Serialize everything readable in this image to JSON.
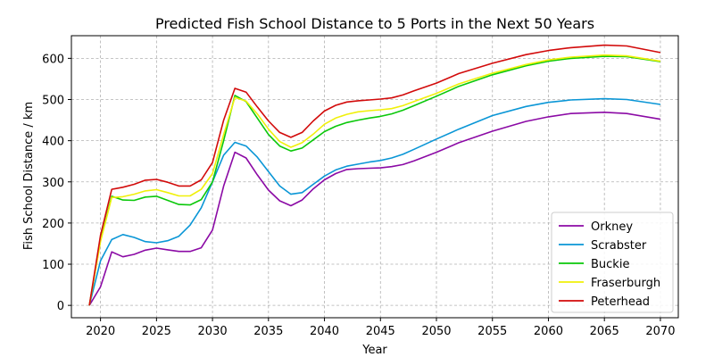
{
  "chart_data": {
    "type": "line",
    "title": "Predicted Fish School Distance to 5 Ports in the Next 50 Years",
    "xlabel": "Year",
    "ylabel": "Fish School Distance / km",
    "xlim": [
      2017.4,
      2071.6
    ],
    "ylim": [
      -30,
      655
    ],
    "xticks": [
      2020,
      2025,
      2030,
      2035,
      2040,
      2045,
      2050,
      2055,
      2060,
      2065,
      2070
    ],
    "yticks": [
      0,
      100,
      200,
      300,
      400,
      500,
      600
    ],
    "grid": true,
    "legend_position": "lower-right",
    "x": [
      2019,
      2020,
      2021,
      2022,
      2023,
      2024,
      2025,
      2026,
      2027,
      2028,
      2029,
      2030,
      2031,
      2032,
      2033,
      2034,
      2035,
      2036,
      2037,
      2038,
      2039,
      2040,
      2041,
      2042,
      2043,
      2044,
      2045,
      2046,
      2047,
      2048,
      2050,
      2052,
      2055,
      2058,
      2060,
      2062,
      2065,
      2067,
      2070
    ],
    "series": [
      {
        "name": "Orkney",
        "color": "#8b0aa5",
        "values": [
          0,
          45,
          130,
          118,
          124,
          134,
          139,
          135,
          131,
          131,
          140,
          183,
          290,
          372,
          358,
          317,
          280,
          254,
          242,
          256,
          283,
          305,
          320,
          330,
          332,
          333,
          334,
          337,
          342,
          351,
          372,
          395,
          423,
          447,
          458,
          466,
          469,
          466,
          452
        ]
      },
      {
        "name": "Scrabster",
        "color": "#0a96d6",
        "values": [
          0,
          108,
          160,
          172,
          165,
          155,
          152,
          157,
          168,
          195,
          237,
          300,
          365,
          396,
          387,
          360,
          325,
          290,
          270,
          274,
          294,
          314,
          329,
          338,
          343,
          348,
          352,
          358,
          367,
          379,
          404,
          428,
          461,
          483,
          493,
          499,
          502,
          500,
          488
        ]
      },
      {
        "name": "Buckie",
        "color": "#0ac80a",
        "values": [
          0,
          158,
          265,
          256,
          255,
          263,
          265,
          255,
          245,
          244,
          257,
          300,
          400,
          510,
          495,
          455,
          415,
          387,
          375,
          382,
          402,
          422,
          435,
          444,
          450,
          455,
          459,
          465,
          474,
          485,
          508,
          532,
          560,
          582,
          593,
          600,
          605,
          604,
          592
        ]
      },
      {
        "name": "Fraserburgh",
        "color": "#f0f00a",
        "values": [
          0,
          155,
          262,
          264,
          270,
          278,
          281,
          274,
          266,
          266,
          282,
          320,
          415,
          505,
          496,
          465,
          428,
          398,
          384,
          395,
          416,
          440,
          455,
          464,
          470,
          473,
          475,
          478,
          485,
          495,
          515,
          538,
          564,
          585,
          596,
          603,
          608,
          606,
          593
        ]
      },
      {
        "name": "Peterhead",
        "color": "#d20a0a",
        "values": [
          0,
          170,
          282,
          287,
          294,
          304,
          306,
          299,
          290,
          290,
          305,
          347,
          450,
          527,
          518,
          482,
          448,
          420,
          408,
          420,
          448,
          472,
          486,
          494,
          497,
          499,
          501,
          504,
          511,
          521,
          540,
          563,
          588,
          609,
          619,
          626,
          632,
          630,
          614
        ]
      }
    ]
  }
}
